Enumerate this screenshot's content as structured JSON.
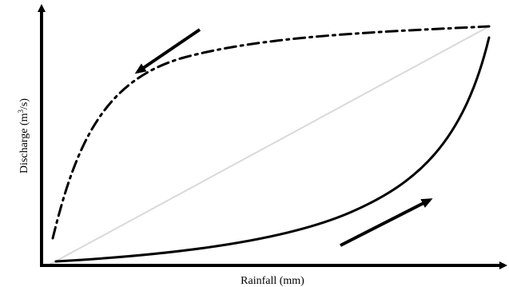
{
  "axes": {
    "x_label": "Rainfall (mm)",
    "y_label_prefix": "Discharge (m",
    "y_label_superscript": "3",
    "y_label_suffix": "/s)"
  },
  "colors": {
    "axis": "#000000",
    "curve": "#000000",
    "reference_line": "#d9d9d9",
    "background": "#ffffff"
  },
  "curves": [
    {
      "name": "rising-limb",
      "style": "solid"
    },
    {
      "name": "falling-limb",
      "style": "dash-dot"
    },
    {
      "name": "one-to-one-line",
      "style": "light-gray-solid"
    }
  ],
  "arrows": [
    {
      "name": "falling-direction",
      "direction": "down-left"
    },
    {
      "name": "rising-direction",
      "direction": "up-right"
    }
  ]
}
